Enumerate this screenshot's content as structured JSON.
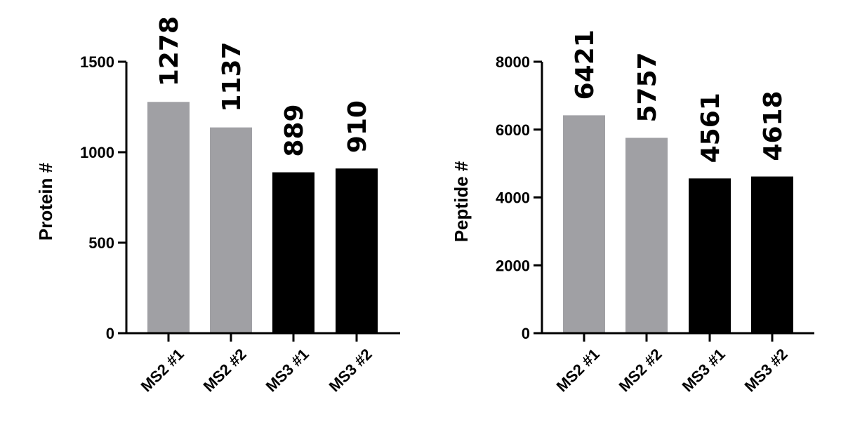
{
  "chart_data": [
    {
      "type": "bar",
      "categories": [
        "MS2 #1",
        "MS2 #2",
        "MS3 #1",
        "MS3 #2"
      ],
      "values": [
        1278,
        1137,
        889,
        910
      ],
      "data_labels": [
        "1278",
        "1137",
        "889",
        "910"
      ],
      "bar_colors": [
        "#a0a0a4",
        "#a0a0a4",
        "#000000",
        "#000000"
      ],
      "ylabel": "Protein #",
      "xlabel": "",
      "ylim": [
        0,
        1500
      ],
      "yticks": [
        0,
        500,
        1000,
        1500
      ],
      "ytick_labels": [
        "0",
        "500",
        "1000",
        "1500"
      ],
      "grid": false,
      "legend": "none"
    },
    {
      "type": "bar",
      "categories": [
        "MS2 #1",
        "MS2 #2",
        "MS3 #1",
        "MS3 #2"
      ],
      "values": [
        6421,
        5757,
        4561,
        4618
      ],
      "data_labels": [
        "6421",
        "5757",
        "4561",
        "4618"
      ],
      "bar_colors": [
        "#a0a0a4",
        "#a0a0a4",
        "#000000",
        "#000000"
      ],
      "ylabel": "Peptide #",
      "xlabel": "",
      "ylim": [
        0,
        8000
      ],
      "yticks": [
        0,
        2000,
        4000,
        6000,
        8000
      ],
      "ytick_labels": [
        "0",
        "2000",
        "4000",
        "6000",
        "8000"
      ],
      "grid": false,
      "legend": "none"
    }
  ]
}
